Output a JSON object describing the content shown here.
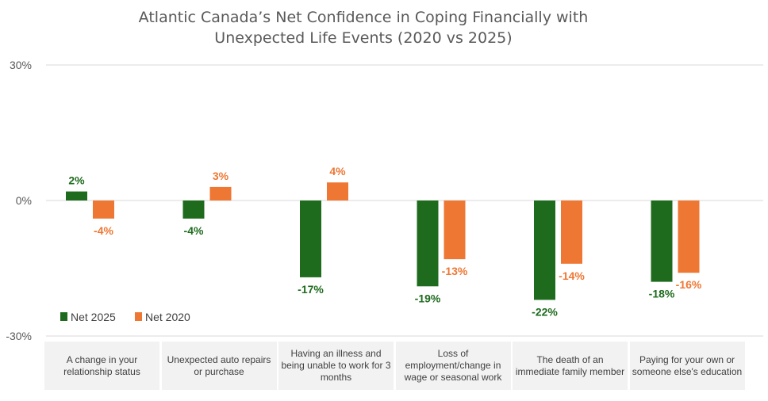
{
  "colors": {
    "net2025": "#1e6b1e",
    "net2020": "#ee7734",
    "grid": "#d9d9d9"
  },
  "chart_data": {
    "type": "bar",
    "title": "Atlantic Canada’s Net Confidence in Coping Financially with Unexpected Life Events (2020 vs 2025)",
    "title_lines": [
      "Atlantic Canada’s Net Confidence in Coping Financially with",
      "Unexpected Life Events (2020 vs 2025)"
    ],
    "categories": [
      "A change in your relationship status",
      "Unexpected auto repairs or purchase",
      "Having an illness and being unable to work for 3 months",
      "Loss of employment/change in wage or seasonal work",
      "The death of an immediate family member",
      "Paying for your own or someone else's education"
    ],
    "series": [
      {
        "name": "Net 2025",
        "values": [
          2,
          -4,
          -17,
          -19,
          -22,
          -18
        ],
        "labels": [
          "2%",
          "-4%",
          "-17%",
          "-19%",
          "-22%",
          "-18%"
        ]
      },
      {
        "name": "Net 2020",
        "values": [
          -4,
          3,
          4,
          -13,
          -14,
          -16
        ],
        "labels": [
          "-4%",
          "3%",
          "4%",
          "-13%",
          "-14%",
          "-16%"
        ]
      }
    ],
    "y_ticks": [
      {
        "value": 30,
        "label": "30%"
      },
      {
        "value": 0,
        "label": "0%"
      },
      {
        "value": -30,
        "label": "-30%"
      }
    ],
    "ylim": [
      -30,
      30
    ],
    "grid": true,
    "legend_position": "bottom-left"
  }
}
